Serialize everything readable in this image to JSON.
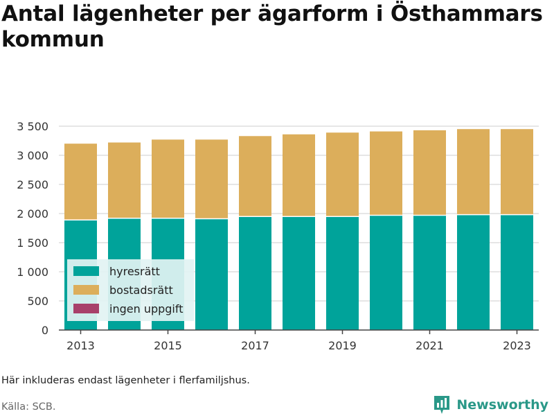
{
  "header": {
    "title": "Antal lägenheter per ägarform i Östhammars kommun"
  },
  "footer": {
    "note": "Här inkluderas endast lägenheter i flerfamiljshus.",
    "source": "Källa: SCB.",
    "brand": "Newsworthy"
  },
  "colors": {
    "hyresratt": "#00a39a",
    "bostadsratt": "#dcae5b",
    "ingen_uppgift": "#a8406a",
    "grid": "#dddddd",
    "brand": "#2a9888",
    "legend_bg": "#e2f3f3"
  },
  "chart_data": {
    "type": "bar",
    "stacked": true,
    "title": "Antal lägenheter per ägarform i Östhammars kommun",
    "xlabel": "",
    "ylabel": "",
    "categories": [
      "2013",
      "2014",
      "2015",
      "2016",
      "2017",
      "2018",
      "2019",
      "2020",
      "2021",
      "2022",
      "2023"
    ],
    "x_tick_labels": [
      "2013",
      "2015",
      "2017",
      "2019",
      "2021",
      "2023"
    ],
    "y_ticks": [
      0,
      500,
      1000,
      1500,
      2000,
      2500,
      3000,
      3500
    ],
    "y_tick_labels": [
      "0",
      "500",
      "1 000",
      "1 500",
      "2 000",
      "2 500",
      "3 000",
      "3 500"
    ],
    "ylim": [
      0,
      3500
    ],
    "grid": true,
    "legend_position": "bottom-left",
    "series": [
      {
        "name": "hyresrätt",
        "color": "#00a39a",
        "values": [
          1890,
          1920,
          1920,
          1910,
          1950,
          1950,
          1950,
          1970,
          1970,
          1980,
          1980
        ]
      },
      {
        "name": "bostadsrätt",
        "color": "#dcae5b",
        "values": [
          1310,
          1300,
          1350,
          1360,
          1380,
          1410,
          1440,
          1440,
          1460,
          1470,
          1470
        ]
      },
      {
        "name": "ingen uppgift",
        "color": "#a8406a",
        "values": [
          0,
          0,
          0,
          0,
          0,
          0,
          0,
          0,
          0,
          0,
          0
        ]
      }
    ]
  }
}
